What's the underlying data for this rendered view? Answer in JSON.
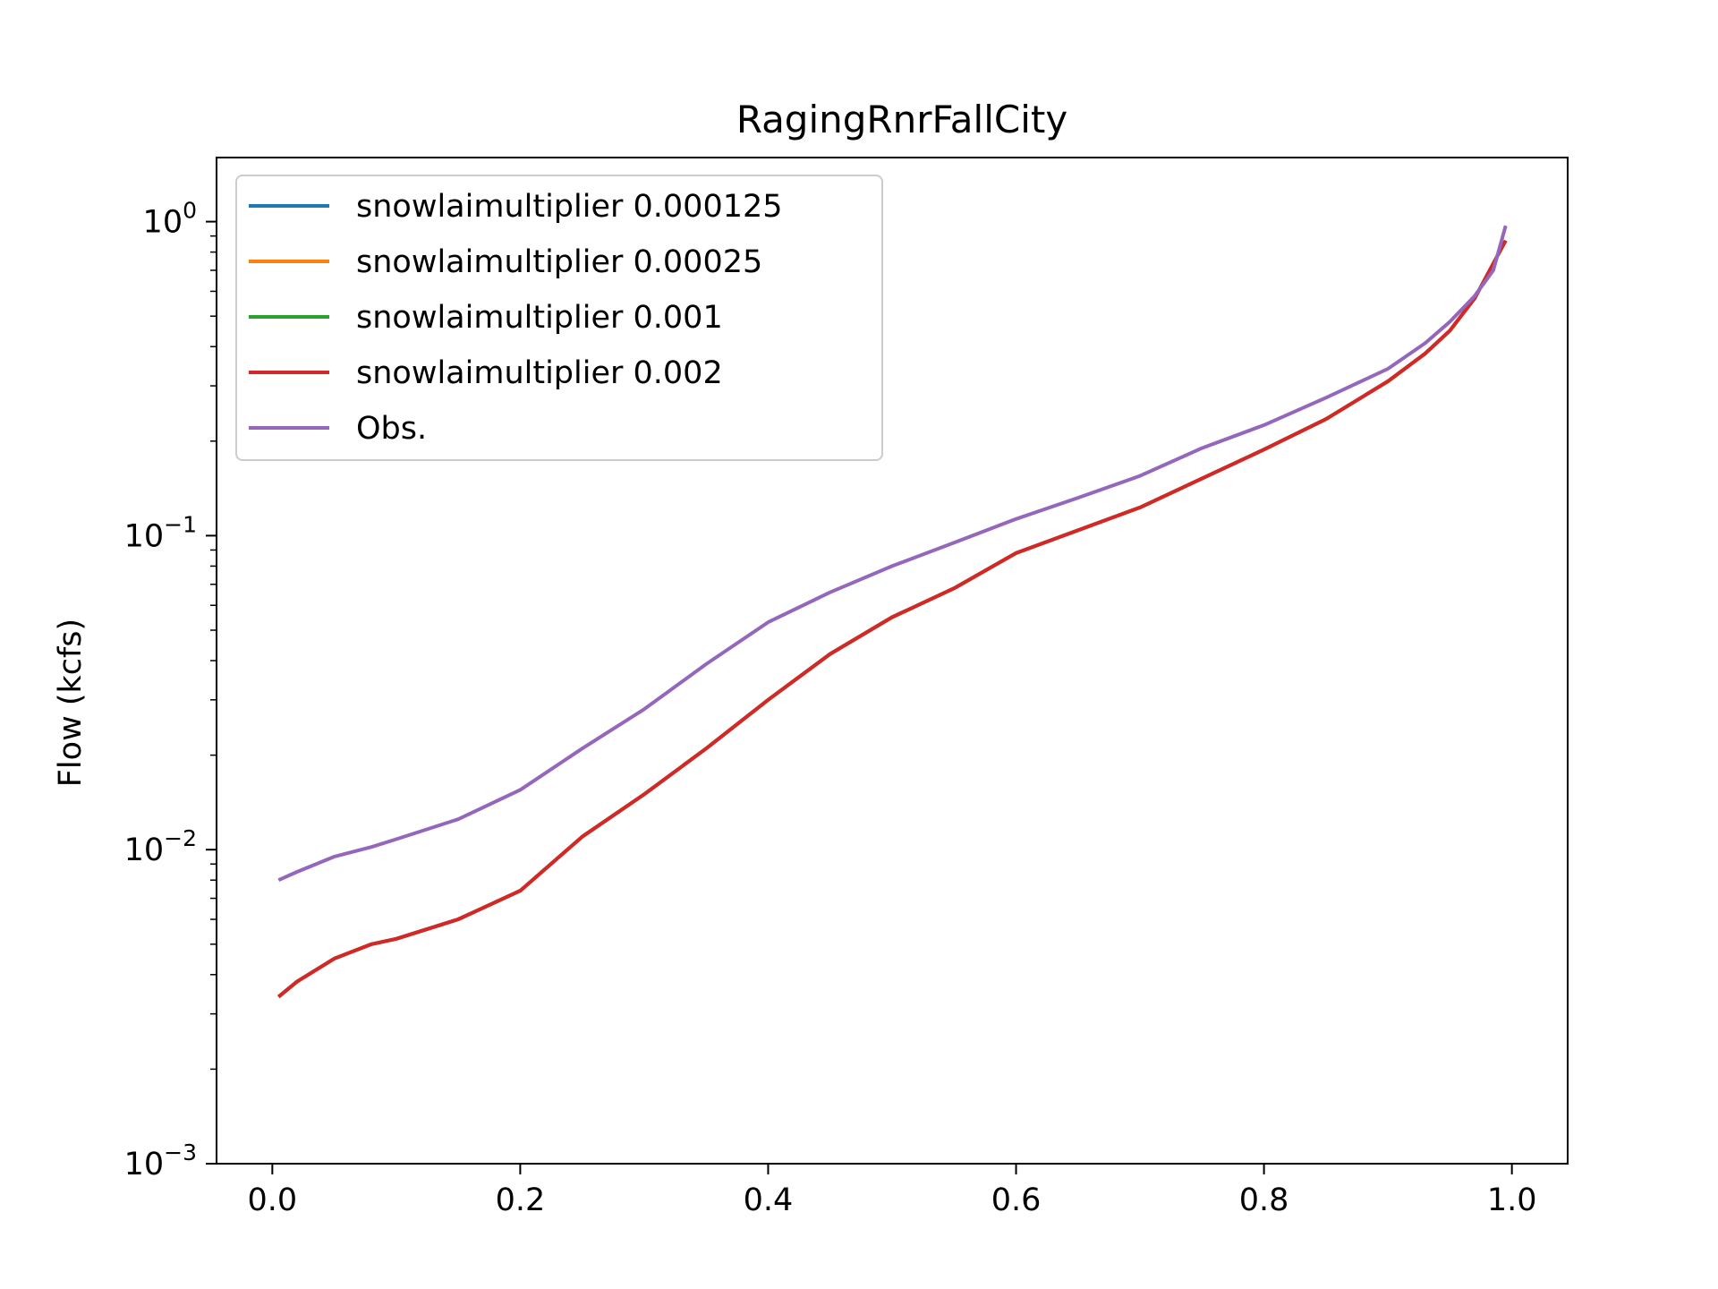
{
  "chart_data": {
    "type": "line",
    "title": "RagingRnrFallCity",
    "xlabel": "",
    "ylabel": "Flow (kcfs)",
    "xlim": [
      -0.045,
      1.045
    ],
    "ylim": [
      0.001,
      1.6
    ],
    "yscale": "log",
    "xticks": [
      0.0,
      0.2,
      0.4,
      0.6,
      0.8,
      1.0
    ],
    "xtick_labels": [
      "0.0",
      "0.2",
      "0.4",
      "0.6",
      "0.8",
      "1.0"
    ],
    "yticks": [
      0.001,
      0.01,
      0.1,
      1
    ],
    "ytick_labels": [
      {
        "base": "10",
        "exp": "−3"
      },
      {
        "base": "10",
        "exp": "−2"
      },
      {
        "base": "10",
        "exp": "−1"
      },
      {
        "base": "10",
        "exp": "0"
      }
    ],
    "grid": false,
    "legend_position": "upper-left",
    "series": [
      {
        "name": "snowlaimultiplier 0.000125",
        "color": "#1f77b4",
        "x": [
          0.005,
          0.02,
          0.05,
          0.08,
          0.1,
          0.15,
          0.2,
          0.25,
          0.3,
          0.35,
          0.4,
          0.45,
          0.5,
          0.55,
          0.6,
          0.65,
          0.7,
          0.75,
          0.8,
          0.85,
          0.9,
          0.93,
          0.95,
          0.97,
          0.99,
          0.995
        ],
        "y": [
          0.0034,
          0.0038,
          0.0045,
          0.005,
          0.0052,
          0.006,
          0.0074,
          0.011,
          0.015,
          0.021,
          0.03,
          0.042,
          0.055,
          0.068,
          0.088,
          0.104,
          0.123,
          0.152,
          0.188,
          0.235,
          0.31,
          0.38,
          0.45,
          0.57,
          0.8,
          0.87
        ]
      },
      {
        "name": "snowlaimultiplier 0.00025",
        "color": "#ff7f0e",
        "x": [
          0.005,
          0.02,
          0.05,
          0.08,
          0.1,
          0.15,
          0.2,
          0.25,
          0.3,
          0.35,
          0.4,
          0.45,
          0.5,
          0.55,
          0.6,
          0.65,
          0.7,
          0.75,
          0.8,
          0.85,
          0.9,
          0.93,
          0.95,
          0.97,
          0.99,
          0.995
        ],
        "y": [
          0.0034,
          0.0038,
          0.0045,
          0.005,
          0.0052,
          0.006,
          0.0074,
          0.011,
          0.015,
          0.021,
          0.03,
          0.042,
          0.055,
          0.068,
          0.088,
          0.104,
          0.123,
          0.152,
          0.188,
          0.235,
          0.31,
          0.38,
          0.45,
          0.57,
          0.8,
          0.87
        ]
      },
      {
        "name": "snowlaimultiplier 0.001",
        "color": "#2ca02c",
        "x": [
          0.005,
          0.02,
          0.05,
          0.08,
          0.1,
          0.15,
          0.2,
          0.25,
          0.3,
          0.35,
          0.4,
          0.45,
          0.5,
          0.55,
          0.6,
          0.65,
          0.7,
          0.75,
          0.8,
          0.85,
          0.9,
          0.93,
          0.95,
          0.97,
          0.99,
          0.995
        ],
        "y": [
          0.0034,
          0.0038,
          0.0045,
          0.005,
          0.0052,
          0.006,
          0.0074,
          0.011,
          0.015,
          0.021,
          0.03,
          0.042,
          0.055,
          0.068,
          0.088,
          0.104,
          0.123,
          0.152,
          0.188,
          0.235,
          0.31,
          0.38,
          0.45,
          0.57,
          0.8,
          0.87
        ]
      },
      {
        "name": "snowlaimultiplier 0.002",
        "color": "#d62728",
        "x": [
          0.005,
          0.02,
          0.05,
          0.08,
          0.1,
          0.15,
          0.2,
          0.25,
          0.3,
          0.35,
          0.4,
          0.45,
          0.5,
          0.55,
          0.6,
          0.65,
          0.7,
          0.75,
          0.8,
          0.85,
          0.9,
          0.93,
          0.95,
          0.97,
          0.99,
          0.995
        ],
        "y": [
          0.0034,
          0.0038,
          0.0045,
          0.005,
          0.0052,
          0.006,
          0.0074,
          0.011,
          0.015,
          0.021,
          0.03,
          0.042,
          0.055,
          0.068,
          0.088,
          0.104,
          0.123,
          0.152,
          0.188,
          0.235,
          0.31,
          0.38,
          0.45,
          0.57,
          0.8,
          0.87
        ]
      },
      {
        "name": "Obs.",
        "color": "#9467bd",
        "x": [
          0.005,
          0.02,
          0.05,
          0.08,
          0.1,
          0.15,
          0.2,
          0.25,
          0.3,
          0.35,
          0.4,
          0.45,
          0.5,
          0.55,
          0.6,
          0.65,
          0.7,
          0.75,
          0.8,
          0.85,
          0.9,
          0.93,
          0.95,
          0.97,
          0.985,
          0.995
        ],
        "y": [
          0.008,
          0.0085,
          0.0095,
          0.0102,
          0.0108,
          0.0125,
          0.0155,
          0.021,
          0.028,
          0.039,
          0.053,
          0.066,
          0.08,
          0.095,
          0.113,
          0.132,
          0.155,
          0.19,
          0.225,
          0.275,
          0.34,
          0.41,
          0.48,
          0.58,
          0.7,
          0.97
        ]
      }
    ]
  }
}
